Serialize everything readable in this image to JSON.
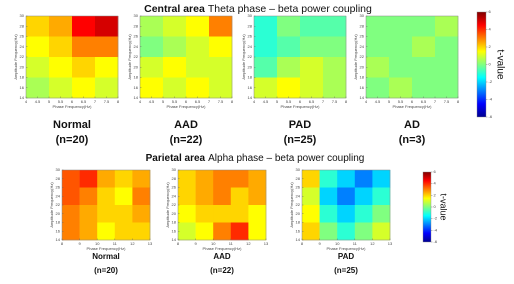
{
  "chart_data": [
    {
      "type": "heatmap",
      "title_bold": "Central area",
      "title": "Theta phase – beta power coupling",
      "xlabel": "Phase Frequency(Hz)",
      "ylabel": "Amplitude Frequency(Hz)",
      "zlabel": "t-value",
      "xlim": [
        4,
        8
      ],
      "xticks": [
        4,
        4.5,
        5,
        5.5,
        6,
        6.5,
        7,
        7.5,
        8
      ],
      "ylim": [
        14,
        30
      ],
      "yticks": [
        14,
        16,
        18,
        20,
        22,
        24,
        26,
        28,
        30
      ],
      "zlim": [
        -6,
        6
      ],
      "zticks": [
        6,
        4,
        2,
        0,
        -2,
        -4,
        -6
      ],
      "panels": [
        {
          "name": "Normal",
          "n": "(n=20)",
          "values": [
            [
              2,
              2.5,
              4.5,
              5
            ],
            [
              1.5,
              2,
              3,
              3
            ],
            [
              1,
              1.5,
              2,
              1.5
            ],
            [
              0.5,
              1,
              1.5,
              1
            ]
          ]
        },
        {
          "name": "AAD",
          "n": "(n=22)",
          "values": [
            [
              0.5,
              1,
              1.5,
              3
            ],
            [
              0,
              0.5,
              1,
              1.5
            ],
            [
              1,
              1.5,
              1,
              1
            ],
            [
              1.5,
              1,
              1.5,
              1
            ]
          ]
        },
        {
          "name": "PAD",
          "n": "(n=25)",
          "values": [
            [
              -1,
              0,
              -0.5,
              -0.5
            ],
            [
              -1,
              -0.5,
              0,
              0
            ],
            [
              -0.5,
              0.5,
              1,
              0.5
            ],
            [
              1,
              1.5,
              1,
              0.5
            ]
          ]
        },
        {
          "name": "AD",
          "n": "(n=3)",
          "values": [
            [
              0,
              0,
              0,
              0.5
            ],
            [
              0,
              0,
              0.5,
              0
            ],
            [
              0.5,
              0,
              0,
              0
            ],
            [
              0,
              0.5,
              0,
              0
            ]
          ]
        }
      ]
    },
    {
      "type": "heatmap",
      "title_bold": "Parietal area",
      "title": "Alpha phase – beta power coupling",
      "xlabel": "Phase Frequency(Hz)",
      "ylabel": "Amplitude Frequency(Hz)",
      "zlabel": "t-value",
      "xlim": [
        8,
        13
      ],
      "xticks": [
        8,
        9,
        10,
        11,
        12,
        13
      ],
      "ylim": [
        14,
        30
      ],
      "yticks": [
        14,
        16,
        18,
        20,
        22,
        24,
        26,
        28,
        30
      ],
      "zlim": [
        -6,
        6
      ],
      "zticks": [
        6,
        4,
        2,
        0,
        -2,
        -4,
        -6
      ],
      "panels": [
        {
          "name": "Normal",
          "n": "(n=20)",
          "values": [
            [
              3.5,
              4,
              2.5,
              2,
              2.5
            ],
            [
              3.5,
              3,
              2,
              1.5,
              3
            ],
            [
              3,
              2.5,
              2,
              2,
              2.5
            ],
            [
              3,
              2.5,
              1.5,
              2,
              2
            ]
          ]
        },
        {
          "name": "AAD",
          "n": "(n=22)",
          "values": [
            [
              2,
              2.5,
              3,
              3,
              2.5
            ],
            [
              2,
              2.5,
              3,
              2,
              2.5
            ],
            [
              1.5,
              2,
              2,
              2,
              1.5
            ],
            [
              1,
              1.5,
              3,
              4,
              1.5
            ]
          ]
        },
        {
          "name": "PAD",
          "n": "(n=25)",
          "values": [
            [
              2,
              -1,
              -2,
              -3,
              -2
            ],
            [
              1,
              -2,
              -3,
              -2,
              -1
            ],
            [
              1.5,
              -1,
              -2,
              -1,
              0
            ],
            [
              2,
              0,
              -1,
              0,
              1
            ]
          ]
        }
      ]
    }
  ]
}
